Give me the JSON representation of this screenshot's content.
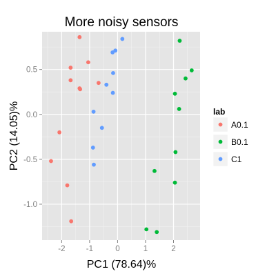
{
  "chart_data": {
    "type": "scatter",
    "title": "More noisy sensors",
    "xlabel": "PC1 (78.64)%",
    "ylabel": "PC2 (14.05)%",
    "xlim": [
      -2.7,
      2.95
    ],
    "ylim": [
      -1.4,
      0.92
    ],
    "xticks": [
      -2,
      -1,
      0,
      1,
      2
    ],
    "yticks": [
      0.5,
      0.0,
      -0.5,
      -1.0
    ],
    "xtick_labels": [
      "-2",
      "-1",
      "0",
      "1",
      "2"
    ],
    "ytick_labels": [
      "0.5",
      "0.0",
      "-0.5",
      "-1.0"
    ],
    "grid": true,
    "background": "#e5e5e5",
    "legend": {
      "title": "lab",
      "placement": "right"
    },
    "series": [
      {
        "name": "A0.1",
        "color": "#f8766d",
        "points": [
          [
            -1.36,
            0.86
          ],
          [
            -1.68,
            0.52
          ],
          [
            -1.68,
            0.38
          ],
          [
            -1.36,
            0.29
          ],
          [
            -1.34,
            0.28
          ],
          [
            -1.05,
            0.58
          ],
          [
            -0.68,
            0.35
          ],
          [
            -2.08,
            -0.2
          ],
          [
            -2.38,
            -0.52
          ],
          [
            -1.8,
            -0.79
          ],
          [
            -1.66,
            -1.19
          ]
        ]
      },
      {
        "name": "B0.1",
        "color": "#00ba38",
        "points": [
          [
            2.22,
            0.82
          ],
          [
            2.65,
            0.49
          ],
          [
            2.43,
            0.4
          ],
          [
            2.05,
            0.23
          ],
          [
            2.2,
            0.06
          ],
          [
            2.07,
            -0.42
          ],
          [
            1.32,
            -0.63
          ],
          [
            2.05,
            -0.76
          ],
          [
            1.03,
            -1.28
          ],
          [
            1.4,
            -1.31
          ]
        ]
      },
      {
        "name": "C1",
        "color": "#619cff",
        "points": [
          [
            0.17,
            0.84
          ],
          [
            -0.18,
            0.69
          ],
          [
            -0.08,
            0.71
          ],
          [
            -0.16,
            0.46
          ],
          [
            -0.4,
            0.33
          ],
          [
            -0.17,
            0.24
          ],
          [
            -0.86,
            0.03
          ],
          [
            -0.56,
            -0.15
          ],
          [
            -0.88,
            -0.37
          ],
          [
            -0.85,
            -0.56
          ]
        ]
      }
    ]
  }
}
